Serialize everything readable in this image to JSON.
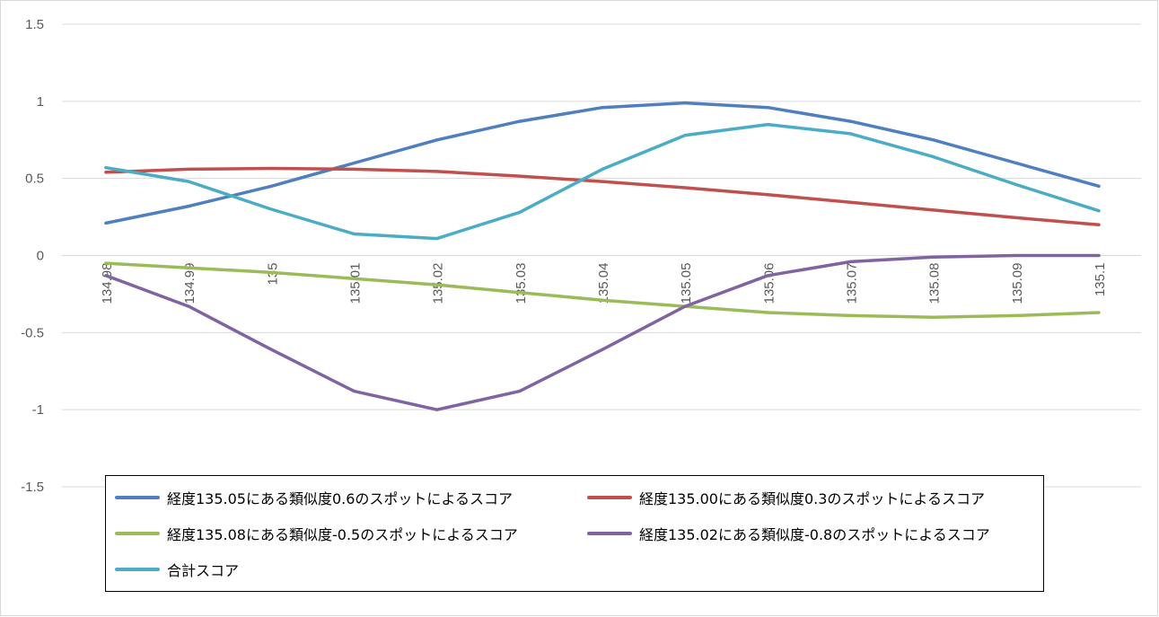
{
  "chart_data": {
    "type": "line",
    "x": [
      "134.98",
      "134.99",
      "135",
      "135.01",
      "135.02",
      "135.03",
      "135.04",
      "135.05",
      "135.06",
      "135.07",
      "135.08",
      "135.09",
      "135.1"
    ],
    "ylim": [
      -1.5,
      1.5
    ],
    "yticks": [
      "1.5",
      "1",
      "0.5",
      "0",
      "-0.5",
      "-1",
      "-1.5"
    ],
    "grid": true,
    "legend_position": "bottom",
    "series": [
      {
        "name": "経度135.05にある類似度0.6のスポットによるスコア",
        "color": "#4f7fbf",
        "values": [
          0.21,
          0.32,
          0.45,
          0.6,
          0.75,
          0.87,
          0.96,
          0.99,
          0.96,
          0.87,
          0.75,
          0.6,
          0.45
        ]
      },
      {
        "name": "経度135.00にある類似度0.3のスポットによるスコア",
        "color": "#c0504d",
        "values": [
          0.54,
          0.56,
          0.565,
          0.56,
          0.545,
          0.515,
          0.48,
          0.44,
          0.395,
          0.345,
          0.295,
          0.245,
          0.2
        ]
      },
      {
        "name": "経度135.08にある類似度-0.5のスポットによるスコア",
        "color": "#9bbb59",
        "values": [
          -0.05,
          -0.08,
          -0.11,
          -0.15,
          -0.19,
          -0.24,
          -0.29,
          -0.33,
          -0.37,
          -0.39,
          -0.4,
          -0.39,
          -0.37
        ]
      },
      {
        "name": "経度135.02にある類似度-0.8のスポットによるスコア",
        "color": "#8064a2",
        "values": [
          -0.13,
          -0.33,
          -0.61,
          -0.88,
          -1.0,
          -0.88,
          -0.61,
          -0.33,
          -0.13,
          -0.04,
          -0.01,
          0.0,
          0.0
        ]
      },
      {
        "name": "合計スコア",
        "color": "#4bacc6",
        "values": [
          0.57,
          0.48,
          0.3,
          0.14,
          0.11,
          0.28,
          0.56,
          0.78,
          0.85,
          0.79,
          0.64,
          0.46,
          0.29
        ]
      }
    ]
  }
}
